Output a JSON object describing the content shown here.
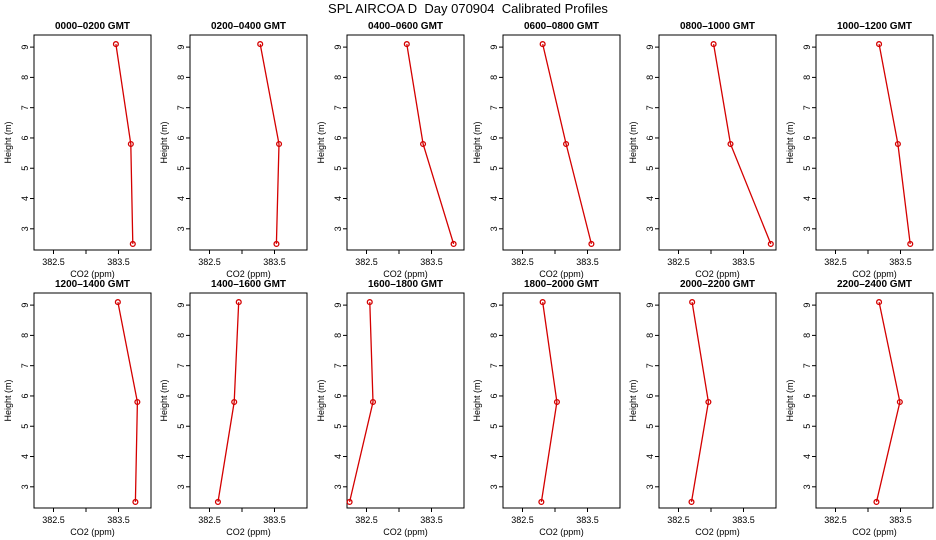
{
  "title": "SPL AIRCOA D  Day 070904  Calibrated Profiles",
  "chart_data": [
    {
      "type": "line",
      "title": "0000–0200 GMT",
      "xlabel": "CO2 (ppm)",
      "ylabel": "Height (m)",
      "xlim": [
        382.2,
        384.0
      ],
      "ylim": [
        2.3,
        9.4
      ],
      "xticks": [
        "382.5",
        "383.5"
      ],
      "yticks": [
        "3",
        "4",
        "5",
        "6",
        "7",
        "8",
        "9"
      ],
      "x": [
        383.46,
        383.69,
        383.72
      ],
      "y": [
        9.1,
        5.8,
        2.5
      ]
    },
    {
      "type": "line",
      "title": "0200–0400 GMT",
      "xlabel": "CO2 (ppm)",
      "ylabel": "Height (m)",
      "xlim": [
        382.2,
        384.0
      ],
      "ylim": [
        2.3,
        9.4
      ],
      "xticks": [
        "382.5",
        "383.5"
      ],
      "yticks": [
        "3",
        "4",
        "5",
        "6",
        "7",
        "8",
        "9"
      ],
      "x": [
        383.28,
        383.57,
        383.53
      ],
      "y": [
        9.1,
        5.8,
        2.5
      ]
    },
    {
      "type": "line",
      "title": "0400–0600 GMT",
      "xlabel": "CO2 (ppm)",
      "ylabel": "Height (m)",
      "xlim": [
        382.2,
        384.0
      ],
      "ylim": [
        2.3,
        9.4
      ],
      "xticks": [
        "382.5",
        "383.5"
      ],
      "yticks": [
        "3",
        "4",
        "5",
        "6",
        "7",
        "8",
        "9"
      ],
      "x": [
        383.12,
        383.37,
        383.84
      ],
      "y": [
        9.1,
        5.8,
        2.5
      ]
    },
    {
      "type": "line",
      "title": "0600–0800 GMT",
      "xlabel": "CO2 (ppm)",
      "ylabel": "Height (m)",
      "xlim": [
        382.2,
        384.0
      ],
      "ylim": [
        2.3,
        9.4
      ],
      "xticks": [
        "382.5",
        "383.5"
      ],
      "yticks": [
        "3",
        "4",
        "5",
        "6",
        "7",
        "8",
        "9"
      ],
      "x": [
        382.81,
        383.17,
        383.56
      ],
      "y": [
        9.1,
        5.8,
        2.5
      ]
    },
    {
      "type": "line",
      "title": "0800–1000 GMT",
      "xlabel": "CO2 (ppm)",
      "ylabel": "Height (m)",
      "xlim": [
        382.2,
        384.0
      ],
      "ylim": [
        2.3,
        9.4
      ],
      "xticks": [
        "382.5",
        "383.5"
      ],
      "yticks": [
        "3",
        "4",
        "5",
        "6",
        "7",
        "8",
        "9"
      ],
      "x": [
        383.04,
        383.3,
        383.92
      ],
      "y": [
        9.1,
        5.8,
        2.5
      ]
    },
    {
      "type": "line",
      "title": "1000–1200 GMT",
      "xlabel": "CO2 (ppm)",
      "ylabel": "Height (m)",
      "xlim": [
        382.2,
        384.0
      ],
      "ylim": [
        2.3,
        9.4
      ],
      "xticks": [
        "382.5",
        "383.5"
      ],
      "yticks": [
        "3",
        "4",
        "5",
        "6",
        "7",
        "8",
        "9"
      ],
      "x": [
        383.17,
        383.46,
        383.65
      ],
      "y": [
        9.1,
        5.8,
        2.5
      ]
    },
    {
      "type": "line",
      "title": "1200–1400 GMT",
      "xlabel": "CO2 (ppm)",
      "ylabel": "Height (m)",
      "xlim": [
        382.2,
        384.0
      ],
      "ylim": [
        2.3,
        9.4
      ],
      "xticks": [
        "382.5",
        "383.5"
      ],
      "yticks": [
        "3",
        "4",
        "5",
        "6",
        "7",
        "8",
        "9"
      ],
      "x": [
        383.49,
        383.79,
        383.76
      ],
      "y": [
        9.1,
        5.8,
        2.5
      ]
    },
    {
      "type": "line",
      "title": "1400–1600 GMT",
      "xlabel": "CO2 (ppm)",
      "ylabel": "Height (m)",
      "xlim": [
        382.2,
        384.0
      ],
      "ylim": [
        2.3,
        9.4
      ],
      "xticks": [
        "382.5",
        "383.5"
      ],
      "yticks": [
        "3",
        "4",
        "5",
        "6",
        "7",
        "8",
        "9"
      ],
      "x": [
        382.95,
        382.88,
        382.63
      ],
      "y": [
        9.1,
        5.8,
        2.5
      ]
    },
    {
      "type": "line",
      "title": "1600–1800 GMT",
      "xlabel": "CO2 (ppm)",
      "ylabel": "Height (m)",
      "xlim": [
        382.2,
        384.0
      ],
      "ylim": [
        2.3,
        9.4
      ],
      "xticks": [
        "382.5",
        "383.5"
      ],
      "yticks": [
        "3",
        "4",
        "5",
        "6",
        "7",
        "8",
        "9"
      ],
      "x": [
        382.55,
        382.6,
        382.24
      ],
      "y": [
        9.1,
        5.8,
        2.5
      ]
    },
    {
      "type": "line",
      "title": "1800–2000 GMT",
      "xlabel": "CO2 (ppm)",
      "ylabel": "Height (m)",
      "xlim": [
        382.2,
        384.0
      ],
      "ylim": [
        2.3,
        9.4
      ],
      "xticks": [
        "382.5",
        "383.5"
      ],
      "yticks": [
        "3",
        "4",
        "5",
        "6",
        "7",
        "8",
        "9"
      ],
      "x": [
        382.81,
        383.03,
        382.79
      ],
      "y": [
        9.1,
        5.8,
        2.5
      ]
    },
    {
      "type": "line",
      "title": "2000–2200 GMT",
      "xlabel": "CO2 (ppm)",
      "ylabel": "Height (m)",
      "xlim": [
        382.2,
        384.0
      ],
      "ylim": [
        2.3,
        9.4
      ],
      "xticks": [
        "382.5",
        "383.5"
      ],
      "yticks": [
        "3",
        "4",
        "5",
        "6",
        "7",
        "8",
        "9"
      ],
      "x": [
        382.71,
        382.96,
        382.7
      ],
      "y": [
        9.1,
        5.8,
        2.5
      ]
    },
    {
      "type": "line",
      "title": "2200–2400 GMT",
      "xlabel": "CO2 (ppm)",
      "ylabel": "Height (m)",
      "xlim": [
        382.2,
        384.0
      ],
      "ylim": [
        2.3,
        9.4
      ],
      "xticks": [
        "382.5",
        "383.5"
      ],
      "yticks": [
        "3",
        "4",
        "5",
        "6",
        "7",
        "8",
        "9"
      ],
      "x": [
        383.17,
        383.49,
        383.13
      ],
      "y": [
        9.1,
        5.8,
        2.5
      ]
    }
  ],
  "style": {
    "line_color": "#d40000",
    "marker_color": "#d40000",
    "axis_color": "#000000"
  }
}
